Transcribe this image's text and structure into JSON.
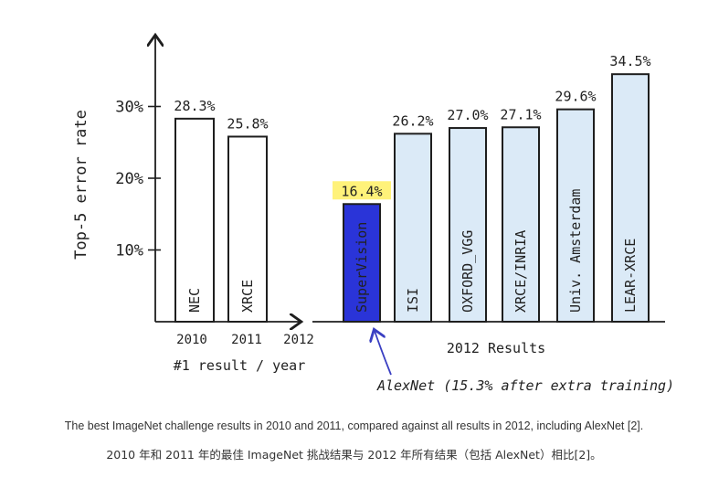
{
  "caption": {
    "en": "The best ImageNet challenge results in 2010 and 2011, compared against all results in 2012, including AlexNet [2].",
    "zh": "2010 年和 2011 年的最佳 ImageNet 挑战结果与 2012 年所有结果（包括 AlexNet）相比[2]。"
  },
  "chart_data": {
    "type": "bar",
    "ylabel": "Top-5 error rate",
    "yticks": [
      "10%",
      "20%",
      "30%"
    ],
    "ylim": [
      0,
      36
    ],
    "unit": "%",
    "groups": [
      {
        "name": "#1 result / year",
        "year_ticks": [
          "2010",
          "2011",
          "2012"
        ],
        "bars": [
          {
            "label": "NEC",
            "value": 28.3,
            "value_label": "28.3%",
            "year": "2010"
          },
          {
            "label": "XRCE",
            "value": 25.8,
            "value_label": "25.8%",
            "year": "2011"
          }
        ]
      },
      {
        "name": "2012 Results",
        "bars": [
          {
            "label": "SuperVision",
            "value": 16.4,
            "value_label": "16.4%",
            "highlight": true
          },
          {
            "label": "ISI",
            "value": 26.2,
            "value_label": "26.2%"
          },
          {
            "label": "OXFORD_VGG",
            "value": 27.0,
            "value_label": "27.0%"
          },
          {
            "label": "XRCE/INRIA",
            "value": 27.1,
            "value_label": "27.1%"
          },
          {
            "label": "Univ. Amsterdam",
            "value": 29.6,
            "value_label": "29.6%"
          },
          {
            "label": "LEAR-XRCE",
            "value": 34.5,
            "value_label": "34.5%"
          }
        ]
      }
    ],
    "annotation": "AlexNet (15.3% after extra training)",
    "colors": {
      "white_bar": "#ffffff",
      "result_bar": "#dbeaf7",
      "highlight_bar": "#2a34d8",
      "highlight_label_bg": "#fff27a",
      "annotation": "#3a3fc2",
      "stroke": "#1e1e1e"
    }
  }
}
